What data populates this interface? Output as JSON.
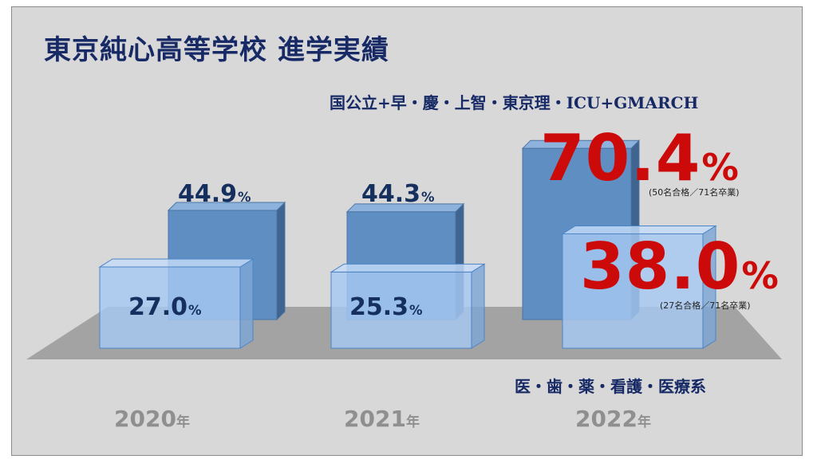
{
  "title": "東京純心高等学校 進学実績",
  "category_labels": {
    "top": "国公立+早・慶・上智・東京理・ICU+GMARCH",
    "bottom": "医・歯・薬・看護・医療系"
  },
  "unit_percent": "%",
  "unit_year": "年",
  "chart_data": {
    "type": "bar",
    "categories": [
      "2020",
      "2021",
      "2022"
    ],
    "series": [
      {
        "name": "国公立+早・慶・上智・東京理・ICU+GMARCH",
        "values": [
          44.9,
          44.3,
          70.4
        ]
      },
      {
        "name": "医・歯・薬・看護・医療系",
        "values": [
          27.0,
          25.3,
          38.0
        ]
      }
    ],
    "annotations": {
      "top_2022": "(50名合格／71名卒業)",
      "bottom_2022": "(27名合格／71名卒業)"
    },
    "value_labels": {
      "top": [
        "44.9",
        "44.3",
        "70.4"
      ],
      "bottom": [
        "27.0",
        "25.3",
        "38.0"
      ]
    },
    "colors": {
      "back_bar": "#5f8fc2",
      "front_bar": "#a6c8f2",
      "floor": "#a3a3a3",
      "highlight": "#cc0a0a",
      "label": "#15305f"
    }
  }
}
